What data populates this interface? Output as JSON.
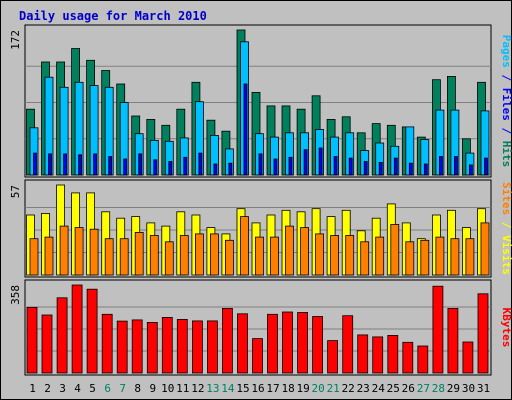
{
  "chart_data": {
    "type": "bar",
    "title": "Daily usage for March 2010",
    "days": [
      "1",
      "2",
      "3",
      "4",
      "5",
      "6",
      "7",
      "8",
      "9",
      "10",
      "11",
      "12",
      "13",
      "14",
      "15",
      "16",
      "17",
      "18",
      "19",
      "20",
      "21",
      "22",
      "23",
      "24",
      "25",
      "26",
      "27",
      "28",
      "29",
      "30",
      "31"
    ],
    "weekend_days": [
      "6",
      "7",
      "13",
      "14",
      "20",
      "21",
      "27",
      "28"
    ],
    "panels": [
      {
        "name": "pages-files-hits",
        "y_tick_label": "172",
        "ylim": [
          0,
          172
        ],
        "series": [
          {
            "key": "hits",
            "name": "Hits",
            "color": "#00805c",
            "values": [
              78,
              134,
              134,
              150,
              136,
              124,
              108,
              70,
              66,
              59,
              78,
              110,
              65,
              52,
              172,
              98,
              82,
              82,
              78,
              94,
              66,
              69,
              50,
              61,
              59,
              57,
              45,
              113,
              117,
              43,
              110
            ]
          },
          {
            "key": "files",
            "name": "Files",
            "color": "#00bfff",
            "values": [
              56,
              116,
              104,
              110,
              106,
              104,
              86,
              49,
              41,
              40,
              44,
              87,
              47,
              31,
              158,
              49,
              45,
              50,
              50,
              54,
              45,
              50,
              29,
              38,
              34,
              57,
              42,
              77,
              77,
              26,
              76
            ]
          },
          {
            "key": "pages",
            "name": "Pages",
            "color": "#0000ff",
            "values": [
              26,
              25,
              25,
              24,
              25,
              22,
              19,
              25,
              18,
              16,
              21,
              26,
              13,
              14,
              108,
              25,
              19,
              21,
              30,
              32,
              22,
              20,
              16,
              15,
              20,
              14,
              13,
              22,
              22,
              12,
              20
            ]
          }
        ],
        "axis_title_parts": [
          {
            "text": "Pages",
            "color": "#00bfff"
          },
          {
            "text": " / ",
            "color": "#0000ff"
          },
          {
            "text": "Files",
            "color": "#0000ff"
          },
          {
            "text": " / ",
            "color": "#0000ff"
          },
          {
            "text": "Hits",
            "color": "#00805c"
          }
        ]
      },
      {
        "name": "sites-visits",
        "y_tick_label": "57",
        "ylim": [
          0,
          57
        ],
        "series": [
          {
            "key": "visits",
            "name": "Visits",
            "color": "#ffff00",
            "values": [
              38,
              39,
              57,
              52,
              52,
              40,
              36,
              37,
              33,
              31,
              40,
              38,
              30,
              26,
              42,
              33,
              38,
              41,
              40,
              42,
              37,
              41,
              28,
              36,
              45,
              33,
              23,
              38,
              41,
              30,
              42
            ]
          },
          {
            "key": "sites",
            "name": "Sites",
            "color": "#ff8000",
            "values": [
              23,
              24,
              31,
              30,
              29,
              23,
              23,
              27,
              25,
              21,
              25,
              26,
              26,
              22,
              37,
              24,
              24,
              31,
              30,
              26,
              25,
              25,
              21,
              24,
              32,
              21,
              22,
              24,
              23,
              23,
              33
            ]
          }
        ],
        "axis_title_parts": [
          {
            "text": "Sites",
            "color": "#ff8000"
          },
          {
            "text": " / ",
            "color": "#ffff00"
          },
          {
            "text": "Visits",
            "color": "#ffff00"
          }
        ]
      },
      {
        "name": "kbytes",
        "y_tick_label": "358",
        "ylim": [
          0,
          358
        ],
        "series": [
          {
            "key": "kbytes",
            "name": "KBytes",
            "color": "#ff0000",
            "values": [
              267,
              236,
              306,
              358,
              341,
              239,
              211,
              216,
              206,
              226,
              218,
              212,
              212,
              263,
              241,
              140,
              239,
              248,
              246,
              230,
              132,
              233,
              155,
              147,
              153,
              125,
              110,
              353,
              263,
              126,
              322
            ]
          }
        ],
        "axis_title_parts": [
          {
            "text": "KBytes",
            "color": "#ff0000"
          }
        ]
      }
    ],
    "legend_placement": "right"
  }
}
